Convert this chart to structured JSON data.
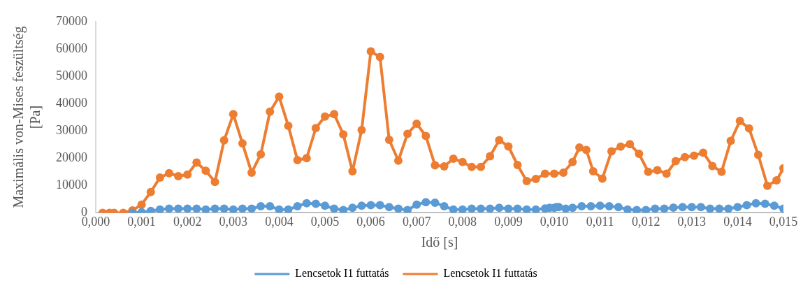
{
  "chart_data": {
    "type": "line",
    "xlabel": "Idő [s]",
    "ylabel": "Maximális von-Mises feszültség [Pa]",
    "xlim": [
      0,
      0.015
    ],
    "xticks": [
      {
        "value": 0,
        "label": "0,000"
      },
      {
        "value": 0.001,
        "label": "0,001"
      },
      {
        "value": 0.002,
        "label": "0,002"
      },
      {
        "value": 0.003,
        "label": "0,003"
      },
      {
        "value": 0.004,
        "label": "0,004"
      },
      {
        "value": 0.005,
        "label": "0,005"
      },
      {
        "value": 0.006,
        "label": "0,006"
      },
      {
        "value": 0.007,
        "label": "0,007"
      },
      {
        "value": 0.008,
        "label": "0,008"
      },
      {
        "value": 0.009,
        "label": "0,009"
      },
      {
        "value": 0.01,
        "label": "0,010"
      },
      {
        "value": 0.011,
        "label": "0,011"
      },
      {
        "value": 0.012,
        "label": "0,012"
      },
      {
        "value": 0.013,
        "label": "0,013"
      },
      {
        "value": 0.014,
        "label": "0,014"
      },
      {
        "value": 0.015,
        "label": "0,015"
      }
    ],
    "ylim": [
      0,
      70000
    ],
    "yticks": [
      0,
      10000,
      20000,
      30000,
      40000,
      50000,
      60000,
      70000
    ],
    "grid": false,
    "legend": "bottom",
    "marker": "circle",
    "line_style": "solid",
    "series": [
      {
        "name": "Lencsetok I1 futtatás",
        "color": "#5b9bd5",
        "x": [
          0.0008,
          0.001,
          0.0012,
          0.0014,
          0.0016,
          0.0018,
          0.002,
          0.0022,
          0.0024,
          0.0026,
          0.0028,
          0.003,
          0.0032,
          0.0034,
          0.0036,
          0.0038,
          0.004,
          0.0042,
          0.0044,
          0.0046,
          0.0048,
          0.005,
          0.0052,
          0.0054,
          0.0056,
          0.0058,
          0.006,
          0.0062,
          0.0064,
          0.0066,
          0.0068,
          0.007,
          0.0072,
          0.0074,
          0.0076,
          0.0078,
          0.008,
          0.0082,
          0.0084,
          0.0086,
          0.0088,
          0.009,
          0.0092,
          0.0094,
          0.0096,
          0.0098,
          0.0099,
          0.01,
          0.01005,
          0.0101,
          0.01025,
          0.0104,
          0.0106,
          0.0108,
          0.011,
          0.0112,
          0.0114,
          0.0116,
          0.0118,
          0.012,
          0.0122,
          0.0124,
          0.0126,
          0.0128,
          0.013,
          0.0132,
          0.0134,
          0.0136,
          0.0138,
          0.014,
          0.0142,
          0.0144,
          0.0146,
          0.0148,
          0.015
        ],
        "values": [
          0,
          200,
          700,
          1200,
          1500,
          1500,
          1500,
          1500,
          1200,
          1500,
          1500,
          1200,
          1500,
          1500,
          2400,
          2400,
          1200,
          1200,
          2400,
          3500,
          3300,
          2600,
          1500,
          1000,
          1800,
          2600,
          2800,
          2800,
          2100,
          1500,
          1000,
          3000,
          3900,
          3700,
          2400,
          1200,
          1200,
          1500,
          1500,
          1500,
          1800,
          1500,
          1500,
          1200,
          1200,
          1600,
          1800,
          1800,
          2100,
          2100,
          1500,
          1800,
          2400,
          2400,
          2600,
          2400,
          2100,
          1200,
          1000,
          1000,
          1500,
          1500,
          1900,
          2100,
          2100,
          2100,
          1500,
          1500,
          1500,
          2100,
          2800,
          3500,
          3300,
          2600,
          1500
        ]
      },
      {
        "name": "Lencsetok I1 futtatás",
        "color": "#ed7d31",
        "x": [
          0.00015,
          0.0003,
          0.0004,
          0.0006,
          0.0008,
          0.001,
          0.0012,
          0.0014,
          0.0016,
          0.0018,
          0.002,
          0.0022,
          0.0024,
          0.0026,
          0.0028,
          0.003,
          0.0032,
          0.0034,
          0.0036,
          0.0038,
          0.004,
          0.0042,
          0.0044,
          0.0046,
          0.0048,
          0.005,
          0.0052,
          0.0054,
          0.0056,
          0.0058,
          0.006,
          0.0062,
          0.0064,
          0.0066,
          0.0068,
          0.007,
          0.0072,
          0.0074,
          0.0076,
          0.0078,
          0.008,
          0.0082,
          0.0084,
          0.0086,
          0.0088,
          0.009,
          0.0092,
          0.0094,
          0.0096,
          0.0098,
          0.01,
          0.0102,
          0.0104,
          0.01055,
          0.0107,
          0.01085,
          0.01105,
          0.01125,
          0.01145,
          0.01165,
          0.01185,
          0.01205,
          0.01225,
          0.01245,
          0.01265,
          0.01285,
          0.01305,
          0.01325,
          0.01345,
          0.01365,
          0.01385,
          0.01405,
          0.01425,
          0.01445,
          0.01465,
          0.01485,
          0.015
        ],
        "values": [
          0,
          0,
          0,
          0,
          900,
          3000,
          7600,
          12900,
          14500,
          13400,
          14000,
          18400,
          15400,
          11300,
          26500,
          36100,
          25400,
          14700,
          21400,
          37000,
          42500,
          31800,
          19300,
          20000,
          31000,
          35200,
          36100,
          28700,
          15200,
          30300,
          59100,
          57000,
          26700,
          19100,
          28900,
          32600,
          28100,
          17400,
          17000,
          19800,
          18600,
          16800,
          16800,
          20700,
          26600,
          24300,
          17500,
          11600,
          12400,
          14300,
          14300,
          14700,
          18600,
          23900,
          23000,
          15200,
          12500,
          22500,
          24200,
          25100,
          21600,
          15000,
          15600,
          14300,
          18900,
          20400,
          20900,
          22000,
          17100,
          15000,
          26300,
          33600,
          30900,
          21200,
          9900,
          11900,
          16300
        ]
      }
    ]
  }
}
